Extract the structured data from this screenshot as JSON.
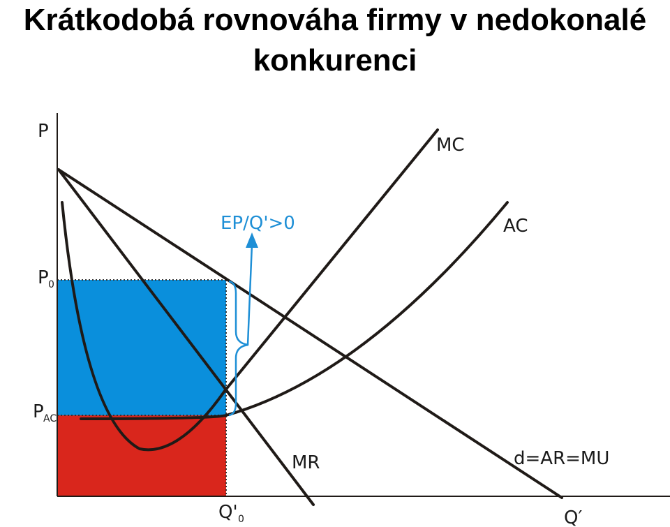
{
  "title": {
    "line1": "Krátkodobá rovnováha firmy v nedokonalé",
    "line2": "konkurenci"
  },
  "axes": {
    "y_label": "P",
    "x_label": "Q′"
  },
  "levels": {
    "p0_main": "P",
    "p0_sub": "0",
    "pac_main": "P",
    "pac_sub": "AC",
    "q0_main": "Q'",
    "q0_sub": "0"
  },
  "curves": {
    "mc": "MC",
    "ac": "AC",
    "mr": "MR",
    "demand": "d=AR=MU"
  },
  "annotation": {
    "profit": "EP/Q'>0"
  },
  "colors": {
    "profit_area": "#0a8fdc",
    "cost_area": "#d9261c",
    "annotation": "#1e8fd6",
    "curve": "#1f1a17"
  }
}
